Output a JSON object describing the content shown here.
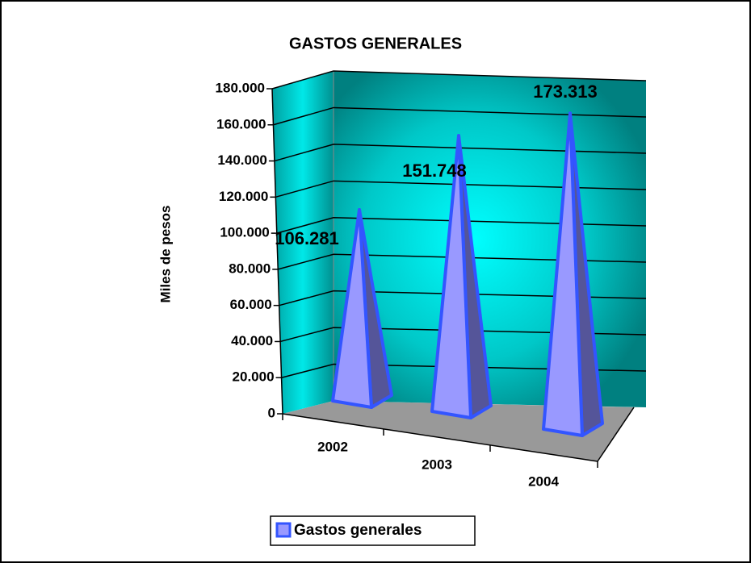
{
  "chart_data": {
    "type": "pyramid3d",
    "title": "GASTOS GENERALES",
    "y_label": "Miles de pesos",
    "categories": [
      "2002",
      "2003",
      "2004"
    ],
    "series": [
      {
        "name": "Gastos generales",
        "color": "#9999ff",
        "values": [
          106281,
          151748,
          173313
        ],
        "value_labels": [
          "106.281",
          "151.748",
          "173.313"
        ]
      }
    ],
    "ylim": [
      0,
      180000
    ],
    "yticks": [
      0,
      {
        "value": 20000,
        "label": "20.000"
      },
      {
        "value": 40000,
        "label": "40.000"
      },
      {
        "value": 60000,
        "label": "60.000"
      },
      {
        "value": 80000,
        "label": "80.000"
      },
      {
        "value": 100000,
        "label": "100.000"
      },
      {
        "value": 120000,
        "label": "120.000"
      },
      {
        "value": 140000,
        "label": "140.000"
      },
      {
        "value": 160000,
        "label": "160.000"
      },
      {
        "value": 180000,
        "label": "180.000"
      }
    ],
    "grid": true,
    "legend": "bottom"
  }
}
